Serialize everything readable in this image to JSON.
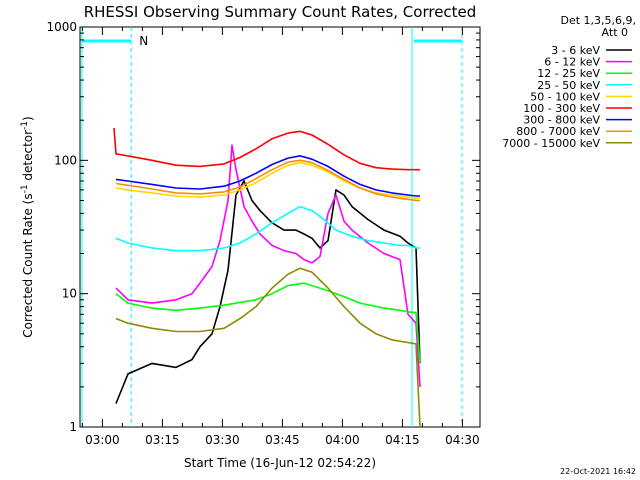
{
  "chart_data": {
    "type": "line",
    "title": "RHESSI Observing Summary Count Rates, Corrected",
    "xlabel": "Start Time (16-Jun-12 02:54:22)",
    "ylabel": "Corrected Count Rate (s^-1 detector^-1)",
    "x_ticks": [
      "03:00",
      "03:15",
      "03:30",
      "03:45",
      "04:00",
      "04:15",
      "04:30"
    ],
    "x_tick_minutes": [
      5.6,
      20.6,
      35.6,
      50.6,
      65.6,
      80.6,
      95.6
    ],
    "xlim_minutes": [
      0,
      100
    ],
    "y_scale": "log",
    "ylim": [
      1,
      1000
    ],
    "y_ticks": [
      "1",
      "10",
      "100",
      "1000"
    ],
    "legend_header": [
      "Det 1,3,5,6,9,",
      "Att 0"
    ],
    "legend_position": "right",
    "series": [
      {
        "name": "3 - 6 keV",
        "color": "#000000",
        "x": [
          9,
          12,
          18,
          24,
          28,
          30,
          33,
          35,
          37,
          39,
          41,
          43,
          45,
          48,
          51,
          54,
          56,
          58,
          60,
          62,
          64,
          66,
          68,
          72,
          76,
          80,
          82,
          84,
          85
        ],
        "y": [
          1.5,
          2.5,
          3,
          2.8,
          3.2,
          4,
          5,
          8,
          15,
          55,
          70,
          50,
          42,
          34,
          30,
          30,
          28,
          26,
          22,
          25,
          60,
          55,
          45,
          36,
          30,
          27,
          24,
          22,
          3
        ]
      },
      {
        "name": "6 - 12 keV",
        "color": "#ff00ff",
        "x": [
          9,
          12,
          18,
          24,
          28,
          30,
          33,
          35,
          37,
          38,
          39,
          41,
          43,
          45,
          48,
          51,
          54,
          56,
          58,
          60,
          62,
          64,
          66,
          68,
          72,
          76,
          80,
          82,
          84,
          85
        ],
        "y": [
          11,
          9,
          8.5,
          9,
          10,
          12,
          16,
          25,
          50,
          130,
          85,
          45,
          35,
          28,
          23,
          21,
          20,
          18,
          17,
          19,
          40,
          55,
          35,
          30,
          24,
          20,
          18,
          7,
          6,
          2
        ]
      },
      {
        "name": "12 - 25 keV",
        "color": "#00ff00",
        "x": [
          9,
          12,
          18,
          24,
          30,
          36,
          40,
          44,
          48,
          52,
          56,
          58,
          62,
          66,
          70,
          76,
          80,
          82,
          84,
          85
        ],
        "y": [
          10,
          8.5,
          7.8,
          7.5,
          7.8,
          8.2,
          8.6,
          9,
          10,
          11.5,
          12,
          11.5,
          10.5,
          9.5,
          8.5,
          7.8,
          7.5,
          7.3,
          7.2,
          3
        ]
      },
      {
        "name": "25 - 50 keV",
        "color": "#00ffff",
        "x": [
          9,
          12,
          18,
          24,
          30,
          36,
          40,
          44,
          48,
          52,
          55,
          58,
          61,
          64,
          68,
          72,
          76,
          80,
          82,
          84,
          85
        ],
        "y": [
          26,
          24,
          22,
          21,
          21,
          22,
          24,
          28,
          34,
          40,
          45,
          42,
          36,
          30,
          27,
          25,
          24,
          23,
          23,
          22,
          22
        ]
      },
      {
        "name": "50 - 100 keV",
        "color": "#ffd700",
        "x": [
          9,
          12,
          18,
          24,
          30,
          36,
          40,
          44,
          48,
          52,
          55,
          58,
          62,
          66,
          70,
          74,
          78,
          82,
          84,
          85
        ],
        "y": [
          62,
          60,
          57,
          54,
          53,
          55,
          60,
          68,
          80,
          92,
          96,
          92,
          82,
          70,
          62,
          57,
          55,
          53,
          52,
          52
        ]
      },
      {
        "name": "100 - 300 keV",
        "color": "#ff0000",
        "x": [
          8.5,
          9,
          12,
          18,
          24,
          30,
          36,
          40,
          44,
          48,
          52,
          55,
          58,
          62,
          66,
          70,
          74,
          78,
          82,
          84,
          85
        ],
        "y": [
          175,
          112,
          108,
          100,
          92,
          90,
          94,
          105,
          122,
          145,
          160,
          165,
          155,
          132,
          110,
          95,
          88,
          86,
          85,
          85,
          85
        ]
      },
      {
        "name": "300 - 800 keV",
        "color": "#0000ff",
        "x": [
          9,
          12,
          18,
          24,
          30,
          36,
          40,
          44,
          48,
          52,
          55,
          58,
          62,
          66,
          70,
          74,
          78,
          82,
          84,
          85
        ],
        "y": [
          72,
          70,
          66,
          62,
          61,
          64,
          70,
          80,
          93,
          104,
          108,
          102,
          90,
          76,
          66,
          60,
          57,
          55,
          54,
          54
        ]
      },
      {
        "name": "800 - 7000 keV",
        "color": "#ff8c00",
        "x": [
          9,
          12,
          18,
          24,
          30,
          36,
          40,
          44,
          48,
          52,
          55,
          58,
          62,
          66,
          70,
          74,
          78,
          82,
          84,
          85
        ],
        "y": [
          67,
          65,
          61,
          57,
          56,
          58,
          63,
          73,
          85,
          97,
          100,
          96,
          84,
          72,
          62,
          56,
          53,
          51,
          50,
          50
        ]
      },
      {
        "name": "7000 - 15000 keV",
        "color": "#8b8b00",
        "x": [
          9,
          12,
          18,
          24,
          30,
          36,
          40,
          44,
          48,
          52,
          55,
          58,
          62,
          66,
          70,
          74,
          78,
          82,
          84,
          85
        ],
        "y": [
          6.5,
          6,
          5.5,
          5.2,
          5.2,
          5.5,
          6.5,
          8,
          11,
          14,
          15.5,
          14.5,
          11,
          8,
          6,
          5,
          4.5,
          4.3,
          4.2,
          1
        ]
      }
    ],
    "annotations": [
      {
        "text": "N",
        "color": "#00ffff"
      }
    ],
    "night_bar_color": "#00ffff"
  },
  "footer_date": "22-Oct-2021 16:42"
}
